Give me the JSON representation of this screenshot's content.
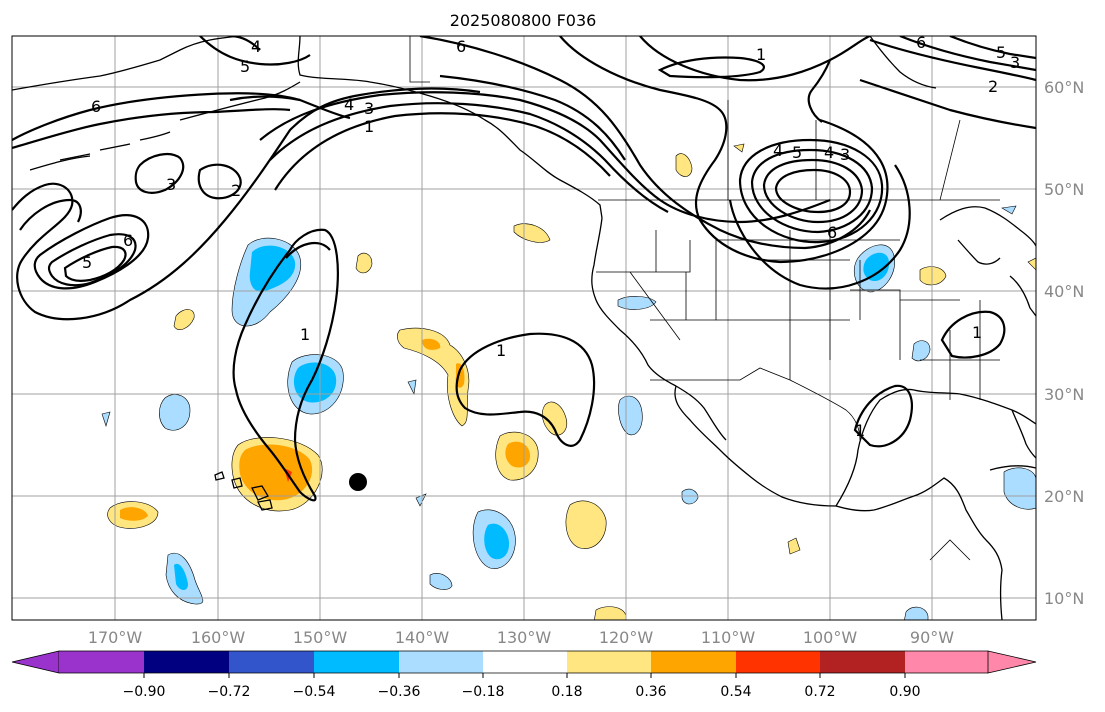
{
  "title": "2025080800 F036",
  "longitude_labels": [
    "170°W",
    "160°W",
    "150°W",
    "140°W",
    "130°W",
    "120°W",
    "110°W",
    "100°W",
    "90°W"
  ],
  "latitude_labels": [
    "60°N",
    "50°N",
    "40°N",
    "30°N",
    "20°N",
    "10°N"
  ],
  "colorbar": {
    "tick_labels": [
      "−0.90",
      "−0.72",
      "−0.54",
      "−0.36",
      "−0.18",
      "0.18",
      "0.36",
      "0.54",
      "0.72",
      "0.90"
    ],
    "colors": [
      "#9933cc",
      "#000080",
      "#3355cc",
      "#00bbff",
      "#aaddff",
      "#ffffff",
      "#ffe680",
      "#ffa500",
      "#ff3300",
      "#b22222",
      "#ff88aa"
    ]
  },
  "contour_labels": [
    "4",
    "5",
    "6",
    "6",
    "3",
    "2",
    "6",
    "5",
    "4",
    "3",
    "1",
    "1",
    "1",
    "6",
    "5",
    "3",
    "2",
    "1",
    "4",
    "5",
    "4",
    "3",
    "6",
    "1",
    "1"
  ],
  "marker": "black-dot"
}
